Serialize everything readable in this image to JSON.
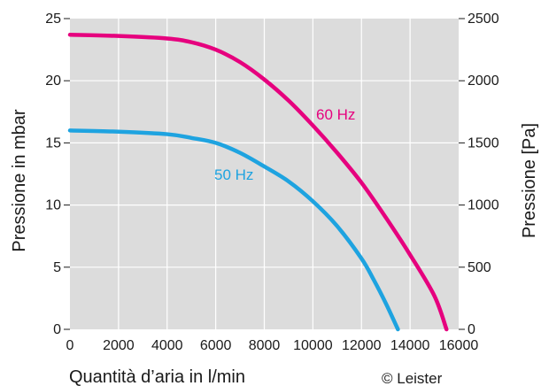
{
  "chart_data": {
    "type": "line",
    "xlabel": "Quantità d’aria in l/min",
    "ylabel": "Pressione in mbar",
    "ylabel_right": "Pressione [Pa]",
    "xlim": [
      0,
      16000
    ],
    "ylim": [
      0,
      25
    ],
    "ylim_right": [
      0,
      2500
    ],
    "x_ticks": [
      "0",
      "2000",
      "4000",
      "6000",
      "8000",
      "10000",
      "12000",
      "14000",
      "16000"
    ],
    "y_ticks": [
      "0",
      "5",
      "10",
      "15",
      "20",
      "25"
    ],
    "y_ticks_right": [
      "0",
      "500",
      "1000",
      "1500",
      "2000",
      "2500"
    ],
    "grid": true,
    "legend": "inline labels",
    "series": [
      {
        "name": "60 Hz",
        "color": "#e6007e",
        "x": [
          0,
          2000,
          4000,
          5000,
          6000,
          7000,
          8000,
          9000,
          10000,
          11000,
          12000,
          13000,
          14000,
          15000,
          15500
        ],
        "y": [
          23.7,
          23.6,
          23.4,
          23.1,
          22.5,
          21.5,
          20.1,
          18.4,
          16.4,
          14.2,
          11.8,
          9.0,
          6.0,
          2.7,
          0
        ]
      },
      {
        "name": "50 Hz",
        "color": "#1ea3e0",
        "x": [
          0,
          2000,
          4000,
          5000,
          6000,
          7000,
          8000,
          9000,
          10000,
          11000,
          12000,
          12500,
          13000,
          13500
        ],
        "y": [
          16.0,
          15.9,
          15.7,
          15.4,
          15.0,
          14.2,
          13.1,
          11.9,
          10.3,
          8.3,
          5.7,
          4.0,
          2.1,
          0
        ]
      }
    ]
  },
  "copyright": "© Leister"
}
